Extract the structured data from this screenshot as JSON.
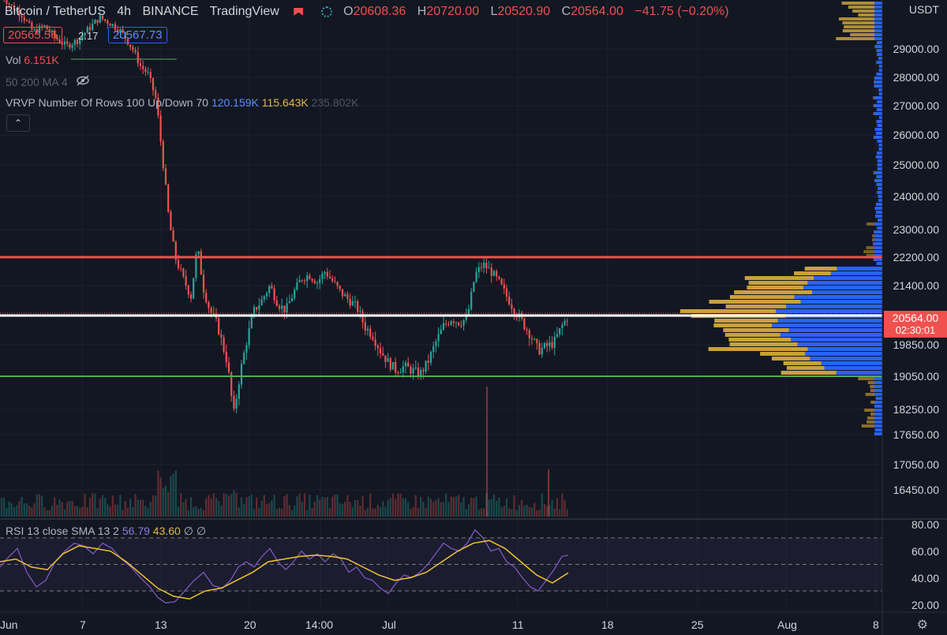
{
  "header": {
    "symbol": "Bitcoin / TetherUS",
    "interval": "4h",
    "exchange": "BINANCE",
    "platform": "TradingView",
    "open_label": "O",
    "open": "20608.36",
    "high_label": "H",
    "high": "20720.00",
    "low_label": "L",
    "low": "20520.90",
    "close_label": "C",
    "close": "20564.00",
    "change": "−41.75 (−0.20%)"
  },
  "quote": {
    "sell": "20565.56",
    "spread": "2.17",
    "buy": "20567.73"
  },
  "vol_legend": {
    "label": "Vol",
    "value": "6.151K"
  },
  "ma_legend": {
    "label": "50 200 MA 4"
  },
  "vrvp_legend": {
    "label": "VRVP Number Of Rows 100 Up/Down 70",
    "up": "120.159K",
    "down": "115.643K",
    "total": "235.802K"
  },
  "rsi_legend": {
    "label": "RSI 13 close SMA 13 2",
    "rsi": "56.79",
    "sma": "43.60",
    "na1": "∅",
    "na2": "∅"
  },
  "price_axis": {
    "currency": "USDT",
    "ticks": [
      "29000.00",
      "28000.00",
      "27000.00",
      "26000.00",
      "25000.00",
      "24000.00",
      "23000.00",
      "22200.00",
      "21400.00",
      "19850.00",
      "19050.00",
      "18250.00",
      "17650.00",
      "17050.00",
      "16450.00"
    ],
    "tick_values": [
      29000,
      28000,
      27000,
      26000,
      25000,
      24000,
      23000,
      22200,
      21400,
      19850,
      19050,
      18250,
      17650,
      17050,
      16450
    ],
    "last_price": "20564.00",
    "countdown": "02:30:01"
  },
  "rsi_axis": {
    "ticks": [
      "80.00",
      "60.00",
      "40.00",
      "20.00"
    ],
    "tick_values": [
      80,
      60,
      40,
      20
    ]
  },
  "time_axis": {
    "labels": [
      "Jun",
      "7",
      "13",
      "20",
      "14:00",
      "Jul",
      "11",
      "18",
      "25",
      "Aug",
      "8"
    ]
  },
  "levels": {
    "resistance": 22200,
    "pivot": 20564,
    "support": 19050
  },
  "colors": {
    "up": "#26a69a",
    "down": "#ef5350",
    "bg": "#131722",
    "resistance": "#f0504e",
    "support": "#4caf50",
    "vrvp_up": "#2962ff",
    "vrvp_down": "#c9a13b",
    "rsi": "#7e57c2",
    "rsi_sma": "#f0c32f"
  },
  "price_path": [
    [
      0,
      31000
    ],
    [
      14,
      30500
    ],
    [
      28,
      30200
    ],
    [
      42,
      29600
    ],
    [
      56,
      29800
    ],
    [
      70,
      29400
    ],
    [
      84,
      29100
    ],
    [
      98,
      29300
    ],
    [
      112,
      29700
    ],
    [
      126,
      30100
    ],
    [
      140,
      29900
    ],
    [
      154,
      29600
    ],
    [
      168,
      29000
    ],
    [
      178,
      28400
    ],
    [
      188,
      28100
    ],
    [
      198,
      27200
    ],
    [
      206,
      25200
    ],
    [
      214,
      23300
    ],
    [
      222,
      22200
    ],
    [
      232,
      21600
    ],
    [
      242,
      21100
    ],
    [
      250,
      22500
    ],
    [
      258,
      21300
    ],
    [
      266,
      20700
    ],
    [
      276,
      20300
    ],
    [
      288,
      19400
    ],
    [
      296,
      18100
    ],
    [
      304,
      19100
    ],
    [
      312,
      19900
    ],
    [
      322,
      20700
    ],
    [
      332,
      21000
    ],
    [
      342,
      21400
    ],
    [
      352,
      20900
    ],
    [
      362,
      20700
    ],
    [
      372,
      21200
    ],
    [
      382,
      21600
    ],
    [
      392,
      21700
    ],
    [
      402,
      21500
    ],
    [
      412,
      21800
    ],
    [
      422,
      21500
    ],
    [
      432,
      21200
    ],
    [
      442,
      21000
    ],
    [
      452,
      20800
    ],
    [
      462,
      20300
    ],
    [
      472,
      20100
    ],
    [
      482,
      19700
    ],
    [
      492,
      19400
    ],
    [
      502,
      19200
    ],
    [
      512,
      19300
    ],
    [
      522,
      19200
    ],
    [
      532,
      19100
    ],
    [
      542,
      19400
    ],
    [
      552,
      19900
    ],
    [
      562,
      20300
    ],
    [
      572,
      20500
    ],
    [
      582,
      20400
    ],
    [
      592,
      20500
    ],
    [
      602,
      21700
    ],
    [
      612,
      22000
    ],
    [
      622,
      21800
    ],
    [
      632,
      21500
    ],
    [
      642,
      21100
    ],
    [
      652,
      20700
    ],
    [
      662,
      20400
    ],
    [
      672,
      20100
    ],
    [
      682,
      19700
    ],
    [
      692,
      19800
    ],
    [
      702,
      19900
    ],
    [
      712,
      20300
    ],
    [
      720,
      20564
    ]
  ],
  "rsi_path": [
    [
      0,
      48
    ],
    [
      10,
      55
    ],
    [
      22,
      62
    ],
    [
      34,
      44
    ],
    [
      46,
      33
    ],
    [
      58,
      38
    ],
    [
      70,
      52
    ],
    [
      82,
      60
    ],
    [
      94,
      66
    ],
    [
      106,
      64
    ],
    [
      118,
      58
    ],
    [
      130,
      66
    ],
    [
      142,
      62
    ],
    [
      154,
      54
    ],
    [
      166,
      48
    ],
    [
      178,
      40
    ],
    [
      190,
      33
    ],
    [
      200,
      25
    ],
    [
      210,
      21
    ],
    [
      222,
      22
    ],
    [
      234,
      30
    ],
    [
      246,
      38
    ],
    [
      258,
      44
    ],
    [
      270,
      34
    ],
    [
      282,
      32
    ],
    [
      292,
      38
    ],
    [
      302,
      48
    ],
    [
      312,
      52
    ],
    [
      322,
      48
    ],
    [
      332,
      56
    ],
    [
      342,
      62
    ],
    [
      352,
      52
    ],
    [
      362,
      46
    ],
    [
      372,
      52
    ],
    [
      382,
      60
    ],
    [
      392,
      54
    ],
    [
      402,
      58
    ],
    [
      412,
      52
    ],
    [
      422,
      58
    ],
    [
      432,
      54
    ],
    [
      442,
      44
    ],
    [
      452,
      48
    ],
    [
      462,
      40
    ],
    [
      472,
      38
    ],
    [
      482,
      32
    ],
    [
      492,
      28
    ],
    [
      502,
      36
    ],
    [
      512,
      42
    ],
    [
      522,
      40
    ],
    [
      532,
      44
    ],
    [
      542,
      50
    ],
    [
      552,
      58
    ],
    [
      562,
      66
    ],
    [
      572,
      62
    ],
    [
      582,
      60
    ],
    [
      592,
      66
    ],
    [
      602,
      76
    ],
    [
      612,
      70
    ],
    [
      622,
      60
    ],
    [
      632,
      62
    ],
    [
      642,
      52
    ],
    [
      652,
      48
    ],
    [
      662,
      40
    ],
    [
      672,
      33
    ],
    [
      682,
      30
    ],
    [
      692,
      38
    ],
    [
      702,
      46
    ],
    [
      712,
      56
    ],
    [
      720,
      57
    ]
  ],
  "rsi_sma_path": [
    [
      0,
      52
    ],
    [
      20,
      54
    ],
    [
      40,
      48
    ],
    [
      60,
      46
    ],
    [
      80,
      58
    ],
    [
      100,
      64
    ],
    [
      120,
      62
    ],
    [
      140,
      60
    ],
    [
      160,
      52
    ],
    [
      180,
      42
    ],
    [
      200,
      32
    ],
    [
      220,
      26
    ],
    [
      240,
      24
    ],
    [
      260,
      30
    ],
    [
      280,
      32
    ],
    [
      300,
      38
    ],
    [
      320,
      44
    ],
    [
      340,
      52
    ],
    [
      360,
      54
    ],
    [
      380,
      56
    ],
    [
      400,
      57
    ],
    [
      420,
      56
    ],
    [
      440,
      54
    ],
    [
      460,
      48
    ],
    [
      480,
      42
    ],
    [
      500,
      38
    ],
    [
      520,
      40
    ],
    [
      540,
      44
    ],
    [
      560,
      52
    ],
    [
      580,
      60
    ],
    [
      600,
      66
    ],
    [
      620,
      68
    ],
    [
      640,
      62
    ],
    [
      660,
      52
    ],
    [
      680,
      42
    ],
    [
      700,
      36
    ],
    [
      720,
      43.6
    ]
  ]
}
